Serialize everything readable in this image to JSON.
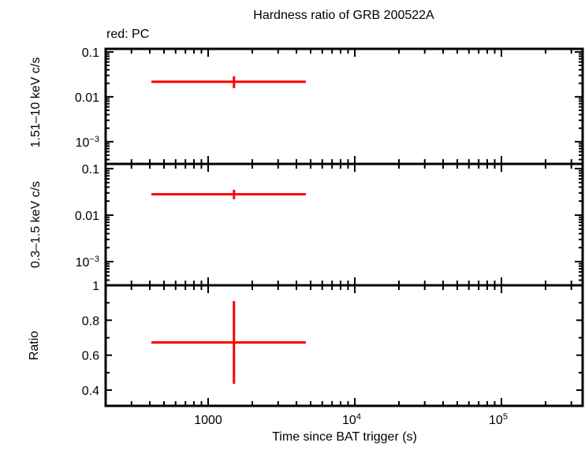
{
  "chart_data": {
    "type": "scatter",
    "title": "Hardness ratio of GRB 200522A",
    "subtitle": "red: PC",
    "xlabel": "Time since BAT trigger (s)",
    "xscale": "log",
    "xlim": [
      200,
      358000
    ],
    "xticks": [
      {
        "value": 1000,
        "label": "1000"
      },
      {
        "value": 10000,
        "label": "10",
        "sup": "4"
      },
      {
        "value": 100000,
        "label": "10",
        "sup": "5"
      }
    ],
    "color": "#ff0000",
    "panels": [
      {
        "ylabel": "1.51–10 keV c/s",
        "yscale": "log",
        "ylim": [
          0.00032,
          0.117
        ],
        "yticks": [
          {
            "value": 0.1,
            "label": "0.1"
          },
          {
            "value": 0.01,
            "label": "0.01"
          },
          {
            "value": 0.001,
            "label": "10",
            "sup": "−3"
          }
        ],
        "points": [
          {
            "x": 1500,
            "xlo": 410,
            "xhi": 4640,
            "y": 0.0216,
            "ylo": 0.0156,
            "yhi": 0.0286
          }
        ]
      },
      {
        "ylabel": "0.3–1.5 keV c/s",
        "yscale": "log",
        "ylim": [
          0.00031,
          0.126
        ],
        "yticks": [
          {
            "value": 0.1,
            "label": "0.1"
          },
          {
            "value": 0.01,
            "label": "0.01"
          },
          {
            "value": 0.001,
            "label": "10",
            "sup": "−3"
          }
        ],
        "points": [
          {
            "x": 1500,
            "xlo": 410,
            "xhi": 4640,
            "y": 0.028,
            "ylo": 0.022,
            "yhi": 0.035
          }
        ]
      },
      {
        "ylabel": "Ratio",
        "yscale": "linear",
        "ylim": [
          0.31,
          1.0
        ],
        "yticks": [
          {
            "value": 1,
            "label": "1"
          },
          {
            "value": 0.8,
            "label": "0.8"
          },
          {
            "value": 0.6,
            "label": "0.6"
          },
          {
            "value": 0.4,
            "label": "0.4"
          }
        ],
        "points": [
          {
            "x": 1500,
            "xlo": 410,
            "xhi": 4640,
            "y": 0.673,
            "ylo": 0.436,
            "yhi": 0.91
          }
        ]
      }
    ]
  }
}
